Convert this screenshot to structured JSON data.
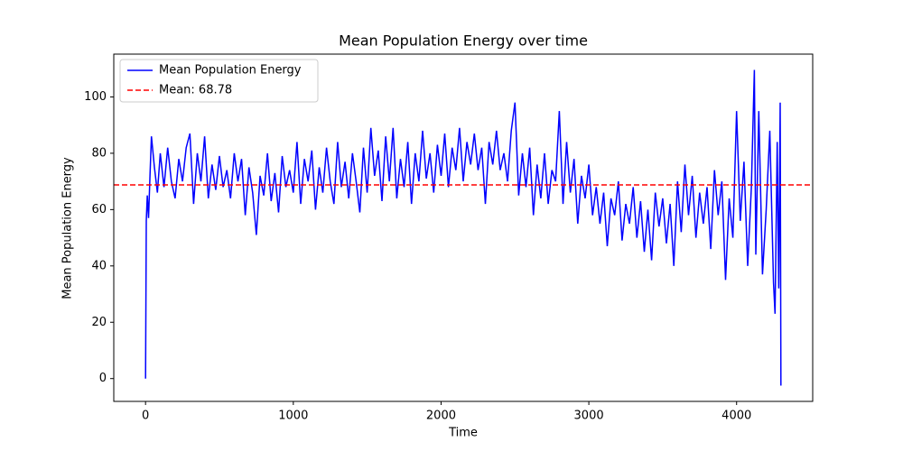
{
  "chart_data": {
    "type": "line",
    "title": "Mean Population Energy over time",
    "x_label": "Time",
    "y_label": "Mean Population Energy",
    "xlim": [
      -215,
      4515
    ],
    "ylim": [
      -8.1,
      115.2
    ],
    "xticks": [
      0,
      1000,
      2000,
      3000,
      4000
    ],
    "yticks": [
      0,
      20,
      40,
      60,
      80,
      100
    ],
    "legend_position": "upper left",
    "series": [
      {
        "name": "Mean Population Energy",
        "color": "#0000ff",
        "x": [
          0,
          5,
          12,
          20,
          30,
          40,
          60,
          80,
          100,
          125,
          150,
          175,
          200,
          225,
          250,
          275,
          300,
          325,
          350,
          375,
          400,
          425,
          450,
          475,
          500,
          525,
          550,
          575,
          600,
          625,
          650,
          675,
          700,
          725,
          750,
          775,
          800,
          825,
          850,
          875,
          900,
          925,
          950,
          975,
          1000,
          1025,
          1050,
          1075,
          1100,
          1125,
          1150,
          1175,
          1200,
          1225,
          1250,
          1275,
          1300,
          1325,
          1350,
          1375,
          1400,
          1425,
          1450,
          1475,
          1500,
          1525,
          1550,
          1575,
          1600,
          1625,
          1650,
          1675,
          1700,
          1725,
          1750,
          1775,
          1800,
          1825,
          1850,
          1875,
          1900,
          1925,
          1950,
          1975,
          2000,
          2025,
          2050,
          2075,
          2100,
          2125,
          2150,
          2175,
          2200,
          2225,
          2250,
          2275,
          2300,
          2325,
          2350,
          2375,
          2400,
          2425,
          2450,
          2475,
          2500,
          2525,
          2550,
          2575,
          2600,
          2625,
          2650,
          2675,
          2700,
          2725,
          2750,
          2775,
          2800,
          2825,
          2850,
          2875,
          2900,
          2925,
          2950,
          2975,
          3000,
          3025,
          3050,
          3075,
          3100,
          3125,
          3150,
          3175,
          3200,
          3225,
          3250,
          3275,
          3300,
          3325,
          3350,
          3375,
          3400,
          3425,
          3450,
          3475,
          3500,
          3525,
          3550,
          3575,
          3600,
          3625,
          3650,
          3675,
          3700,
          3725,
          3750,
          3775,
          3800,
          3825,
          3850,
          3875,
          3900,
          3925,
          3950,
          3975,
          4000,
          4025,
          4050,
          4075,
          4100,
          4120,
          4130,
          4150,
          4175,
          4200,
          4225,
          4250,
          4260,
          4275,
          4285,
          4295,
          4300
        ],
        "values": [
          0,
          56,
          65,
          57,
          72,
          86,
          75,
          66,
          80,
          68,
          82,
          70,
          64,
          78,
          70,
          82,
          87,
          62,
          80,
          70,
          86,
          64,
          76,
          67,
          79,
          68,
          74,
          64,
          80,
          70,
          78,
          58,
          75,
          66,
          51,
          72,
          65,
          80,
          63,
          73,
          59,
          79,
          68,
          74,
          66,
          84,
          62,
          78,
          70,
          81,
          60,
          75,
          66,
          82,
          70,
          62,
          84,
          68,
          77,
          64,
          80,
          70,
          59,
          82,
          66,
          89,
          72,
          81,
          63,
          86,
          70,
          89,
          64,
          78,
          68,
          84,
          62,
          80,
          70,
          88,
          71,
          80,
          66,
          83,
          72,
          87,
          68,
          82,
          74,
          89,
          70,
          84,
          76,
          87,
          74,
          82,
          62,
          84,
          76,
          88,
          74,
          80,
          70,
          88,
          98,
          65,
          80,
          68,
          82,
          58,
          76,
          64,
          80,
          62,
          74,
          70,
          95,
          62,
          84,
          66,
          78,
          55,
          72,
          64,
          76,
          58,
          68,
          55,
          66,
          47,
          64,
          58,
          70,
          49,
          62,
          55,
          68,
          50,
          63,
          45,
          60,
          42,
          66,
          54,
          64,
          48,
          62,
          40,
          70,
          52,
          76,
          58,
          72,
          50,
          66,
          55,
          68,
          46,
          74,
          58,
          70,
          35,
          64,
          50,
          95,
          56,
          77,
          40,
          68,
          109.6,
          44,
          95,
          37,
          60,
          88,
          34,
          23,
          84,
          32,
          98,
          -2.5
        ]
      }
    ],
    "hline": {
      "name": "Mean: 68.78",
      "value": 68.78,
      "color": "#ff0000"
    }
  }
}
